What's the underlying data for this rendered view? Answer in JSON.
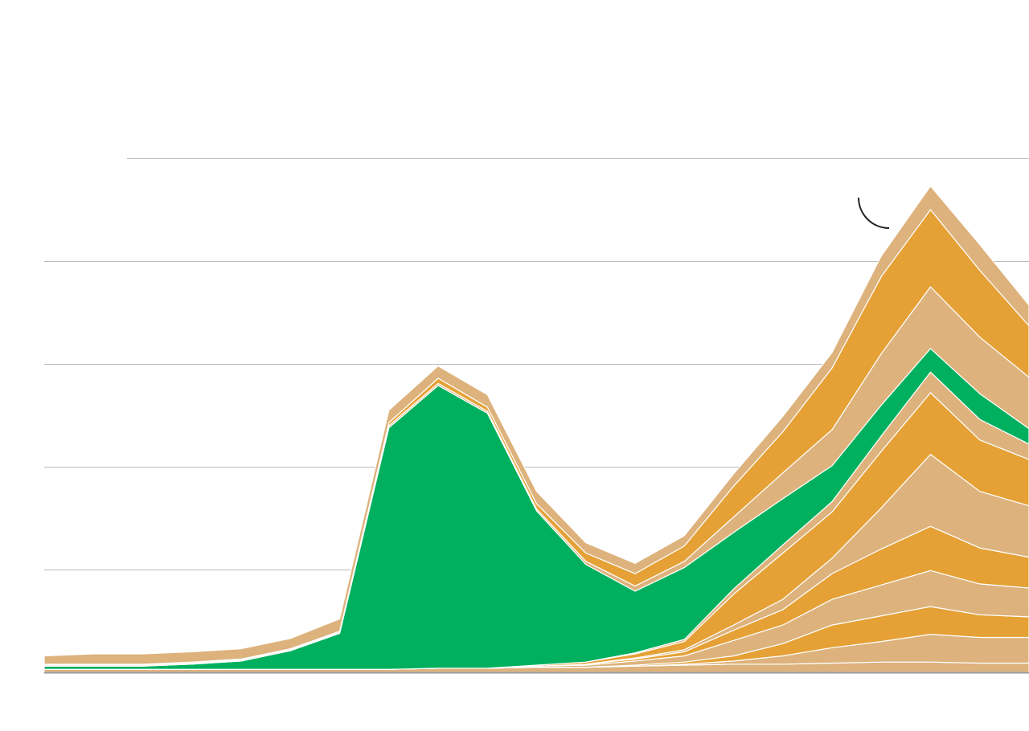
{
  "chart_data": {
    "type": "area",
    "stacked": true,
    "title": "",
    "xlabel": "",
    "ylabel": "",
    "ylim": [
      0,
      5
    ],
    "grid": true,
    "legend": "none",
    "x": [
      0,
      1,
      2,
      3,
      4,
      5,
      6,
      7,
      8,
      9,
      10,
      11,
      12,
      13,
      14,
      15,
      16,
      17,
      18,
      19,
      20
    ],
    "series": [
      {
        "color": "#ddb27c",
        "values": [
          0.03,
          0.03,
          0.03,
          0.03,
          0.03,
          0.03,
          0.03,
          0.03,
          0.04,
          0.04,
          0.05,
          0.05,
          0.06,
          0.07,
          0.08,
          0.08,
          0.09,
          0.1,
          0.1,
          0.09,
          0.09
        ]
      },
      {
        "color": "#ddb27c",
        "values": [
          0,
          0,
          0,
          0,
          0,
          0,
          0,
          0,
          0,
          0,
          0,
          0,
          0,
          0.01,
          0.03,
          0.08,
          0.15,
          0.2,
          0.27,
          0.25,
          0.25
        ]
      },
      {
        "color": "#e5a135",
        "values": [
          0,
          0,
          0,
          0,
          0,
          0,
          0,
          0,
          0,
          0,
          0,
          0,
          0.01,
          0.02,
          0.05,
          0.12,
          0.22,
          0.25,
          0.27,
          0.22,
          0.2
        ]
      },
      {
        "color": "#ddb27c",
        "values": [
          0,
          0,
          0,
          0,
          0,
          0,
          0,
          0,
          0,
          0,
          0.01,
          0.02,
          0.04,
          0.06,
          0.15,
          0.18,
          0.25,
          0.3,
          0.35,
          0.3,
          0.28
        ]
      },
      {
        "color": "#e5a135",
        "values": [
          0,
          0,
          0,
          0,
          0,
          0,
          0,
          0,
          0,
          0,
          0,
          0.01,
          0.02,
          0.04,
          0.1,
          0.15,
          0.25,
          0.35,
          0.43,
          0.35,
          0.3
        ]
      },
      {
        "color": "#ddb27c",
        "values": [
          0,
          0,
          0,
          0,
          0,
          0,
          0,
          0,
          0,
          0,
          0,
          0,
          0.01,
          0.02,
          0.05,
          0.1,
          0.15,
          0.4,
          0.7,
          0.55,
          0.5
        ]
      },
      {
        "color": "#e5a135",
        "values": [
          0,
          0,
          0,
          0,
          0,
          0,
          0,
          0,
          0,
          0,
          0.01,
          0.02,
          0.04,
          0.08,
          0.3,
          0.45,
          0.45,
          0.55,
          0.6,
          0.5,
          0.45
        ]
      },
      {
        "color": "#ddb27c",
        "values": [
          0,
          0,
          0,
          0,
          0,
          0,
          0,
          0,
          0,
          0,
          0,
          0,
          0.01,
          0.02,
          0.05,
          0.08,
          0.1,
          0.15,
          0.2,
          0.2,
          0.15
        ]
      },
      {
        "color": "#00b05e",
        "values": [
          0.03,
          0.03,
          0.03,
          0.05,
          0.08,
          0.18,
          0.35,
          2.35,
          2.75,
          2.48,
          1.5,
          0.95,
          0.6,
          0.7,
          0.55,
          0.45,
          0.35,
          0.3,
          0.23,
          0.25,
          0.15
        ]
      },
      {
        "color": "#ddb27c",
        "values": [
          0.01,
          0.01,
          0.01,
          0.01,
          0.01,
          0.01,
          0.01,
          0.02,
          0.02,
          0.02,
          0.02,
          0.03,
          0.05,
          0.06,
          0.15,
          0.25,
          0.35,
          0.5,
          0.6,
          0.55,
          0.5
        ]
      },
      {
        "color": "#e5a135",
        "values": [
          0.01,
          0.01,
          0.01,
          0.01,
          0.01,
          0.01,
          0.01,
          0.03,
          0.05,
          0.04,
          0.05,
          0.08,
          0.12,
          0.15,
          0.3,
          0.4,
          0.6,
          0.75,
          0.75,
          0.65,
          0.5
        ]
      },
      {
        "color": "#ddb27c",
        "values": [
          0.08,
          0.1,
          0.1,
          0.1,
          0.1,
          0.1,
          0.12,
          0.12,
          0.12,
          0.12,
          0.12,
          0.1,
          0.1,
          0.1,
          0.12,
          0.15,
          0.15,
          0.2,
          0.23,
          0.25,
          0.2
        ]
      }
    ],
    "colors": {
      "green": "#00b05e",
      "orange": "#e5a135",
      "tan": "#ddb27c",
      "gridline": "#bbbbbb"
    }
  }
}
